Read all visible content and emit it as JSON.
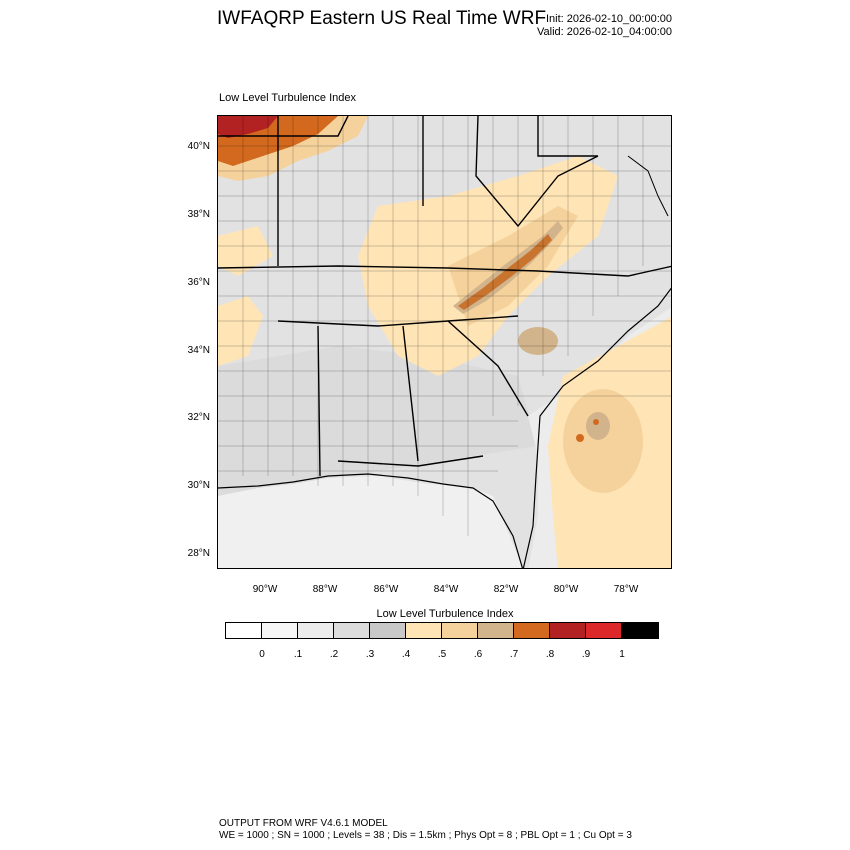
{
  "header": {
    "title": "IWFAQRP Eastern US Real Time WRF",
    "init": "Init: 2026-02-10_00:00:00",
    "valid": "Valid: 2026-02-10_04:00:00"
  },
  "field_label": "Low Level Turbulence Index",
  "map": {
    "lat_labels": [
      "40°N",
      "38°N",
      "36°N",
      "34°N",
      "32°N",
      "30°N",
      "28°N"
    ],
    "lon_labels": [
      "90°W",
      "88°W",
      "86°W",
      "84°W",
      "82°W",
      "80°W",
      "78°W"
    ]
  },
  "colorbar": {
    "title": "Low Level Turbulence Index",
    "colors": [
      "#ffffff",
      "#f6f6f6",
      "#ececec",
      "#dcdcdc",
      "#c8c8c8",
      "#ffe4b5",
      "#f5d29c",
      "#d2b48c",
      "#d2691e",
      "#b22222",
      "#dc2828",
      "#000000"
    ],
    "tick_labels": [
      "0",
      ".1",
      ".2",
      ".3",
      ".4",
      ".5",
      ".6",
      ".7",
      ".8",
      ".9",
      "1"
    ]
  },
  "footer": {
    "line1": "OUTPUT FROM WRF V4.6.1 MODEL",
    "line2": "WE = 1000 ; SN = 1000 ; Levels = 38 ; Dis = 1.5km ; Phys Opt = 8 ; PBL Opt = 1 ; Cu Opt = 3"
  }
}
